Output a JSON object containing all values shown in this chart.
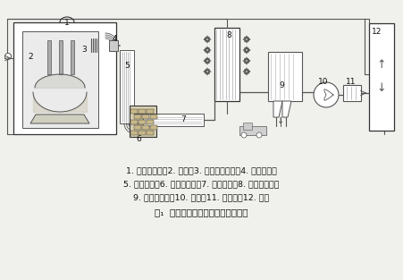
{
  "bg_color": "#f0f0ec",
  "line_color": "#555555",
  "dark_color": "#333333",
  "text_color": "#111111",
  "light_gray": "#cccccc",
  "mid_gray": "#aaaaaa",
  "caption_line1": "1. 电炉密闭罩；2. 电炉；3. 四孔水冷弯头；4. 水冷滑套；",
  "caption_line2": "5. 水冷烟道；6. 燃烧沉降室；7. 水冷烟道；8. 机力风冷器；",
  "caption_line3": "9. 布袋除尘器；10. 风机；11. 消声器；12. 烟囱",
  "title": "图₁  水冷＋机力风冷系统流程示意图"
}
